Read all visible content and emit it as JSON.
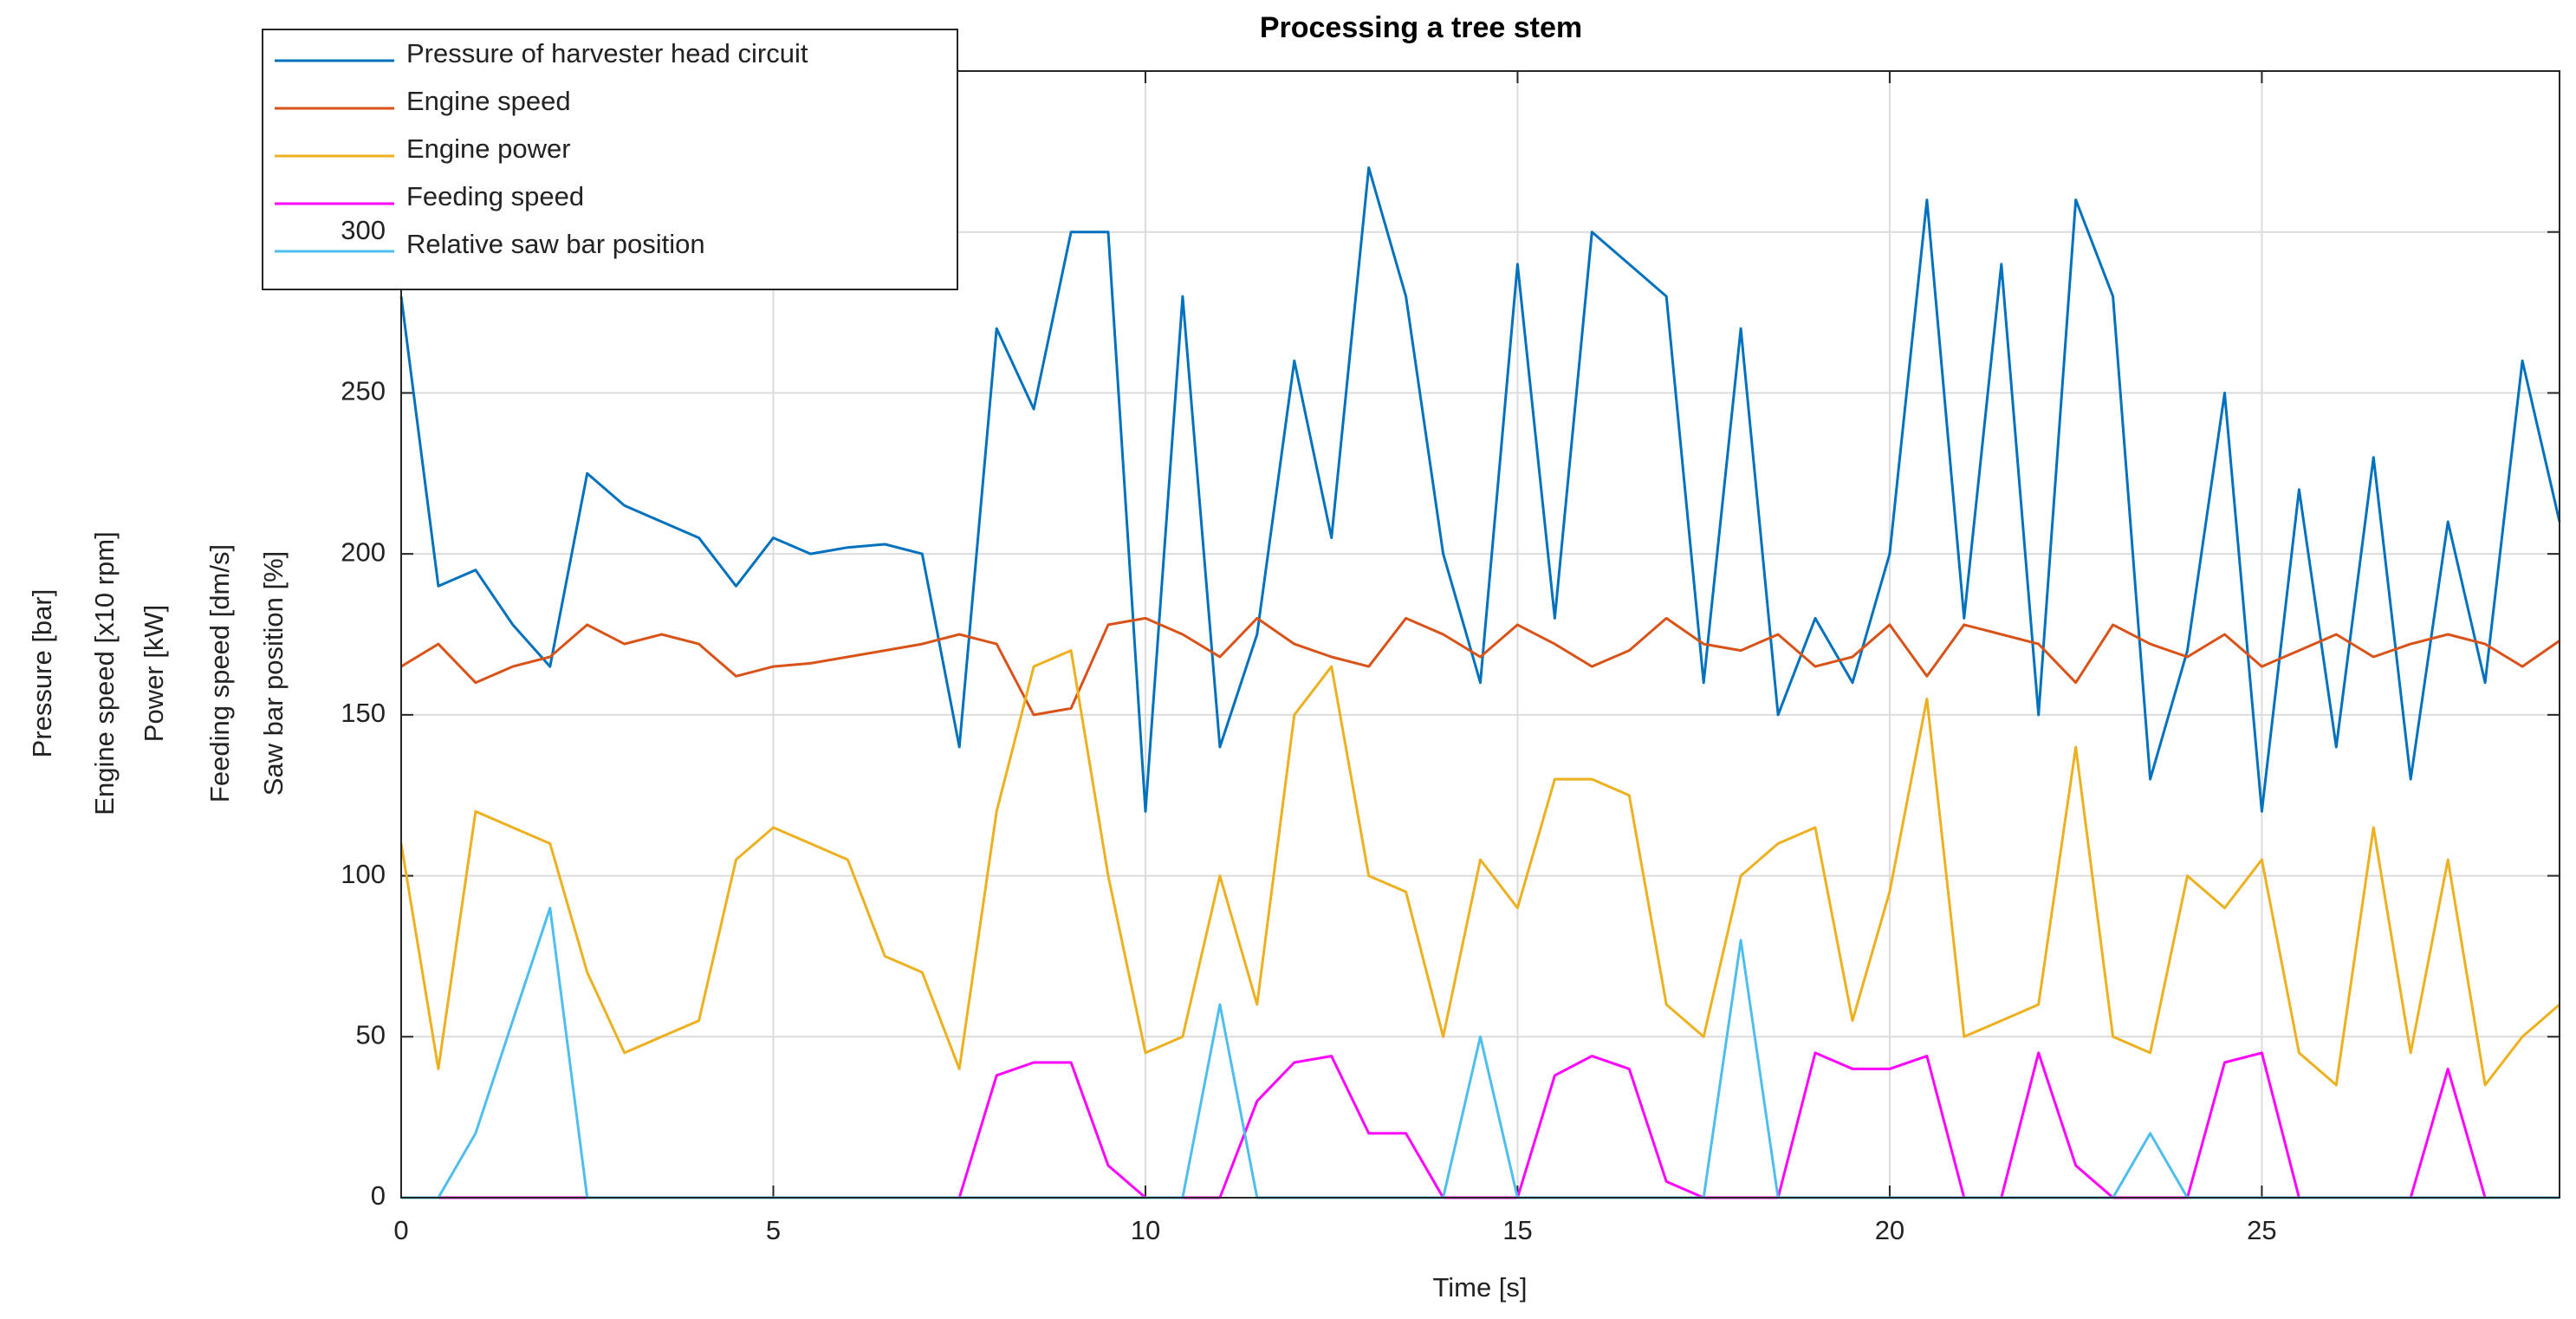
{
  "chart_data": {
    "type": "line",
    "title": "Processing a tree stem",
    "x_label": "Time [s]",
    "y_label": [
      "Pressure [bar]",
      "Engine speed [x10 rpm]",
      "Power [kW]",
      "Feeding speed [dm/s]",
      "Saw bar position [%]"
    ],
    "xlim": [
      0,
      29
    ],
    "ylim": [
      0,
      350
    ],
    "xticks": [
      0,
      5,
      10,
      15,
      20,
      25
    ],
    "yticks": [
      0,
      50,
      100,
      150,
      200,
      250,
      300
    ],
    "grid": true,
    "legend": "upper left",
    "x": [
      0,
      0.5,
      1,
      1.5,
      2,
      2.5,
      3,
      3.5,
      4,
      4.5,
      5,
      5.5,
      6,
      6.5,
      7,
      7.5,
      8,
      8.5,
      9,
      9.5,
      10,
      10.5,
      11,
      11.5,
      12,
      12.5,
      13,
      13.5,
      14,
      14.5,
      15,
      15.5,
      16,
      16.5,
      17,
      17.5,
      18,
      18.5,
      19,
      19.5,
      20,
      20.5,
      21,
      21.5,
      22,
      22.5,
      23,
      23.5,
      24,
      24.5,
      25,
      25.5,
      26,
      26.5,
      27,
      27.5,
      28,
      28.5,
      29
    ],
    "series": [
      {
        "name": "Pressure of harvester head circuit",
        "color": "#0072bd",
        "values": [
          280,
          190,
          195,
          178,
          165,
          225,
          215,
          210,
          205,
          190,
          205,
          200,
          202,
          203,
          200,
          140,
          270,
          245,
          300,
          300,
          120,
          280,
          140,
          175,
          260,
          205,
          320,
          280,
          200,
          160,
          290,
          180,
          300,
          290,
          280,
          160,
          270,
          150,
          180,
          160,
          200,
          310,
          180,
          290,
          150,
          310,
          280,
          130,
          170,
          250,
          120,
          220,
          140,
          230,
          130,
          210,
          160,
          260,
          210
        ]
      },
      {
        "name": "Engine speed",
        "color": "#d95319",
        "values": [
          165,
          172,
          160,
          165,
          168,
          178,
          172,
          175,
          172,
          162,
          165,
          166,
          168,
          170,
          172,
          175,
          172,
          150,
          152,
          178,
          180,
          175,
          168,
          180,
          172,
          168,
          165,
          180,
          175,
          168,
          178,
          172,
          165,
          170,
          180,
          172,
          170,
          175,
          165,
          168,
          178,
          162,
          178,
          175,
          172,
          160,
          178,
          172,
          168,
          175,
          165,
          170,
          175,
          168,
          172,
          175,
          172,
          165,
          173
        ]
      },
      {
        "name": "Engine power",
        "color": "#edb120",
        "values": [
          110,
          40,
          120,
          115,
          110,
          70,
          45,
          50,
          55,
          105,
          115,
          110,
          105,
          75,
          70,
          40,
          120,
          165,
          170,
          100,
          45,
          50,
          100,
          60,
          150,
          165,
          100,
          95,
          50,
          105,
          90,
          130,
          130,
          125,
          60,
          50,
          100,
          110,
          115,
          55,
          95,
          155,
          50,
          55,
          60,
          140,
          50,
          45,
          100,
          90,
          105,
          45,
          35,
          115,
          45,
          105,
          35,
          50,
          60
        ]
      },
      {
        "name": "Feeding speed",
        "color": "#ff00ff",
        "values": [
          0,
          0,
          0,
          0,
          0,
          0,
          0,
          0,
          0,
          0,
          0,
          0,
          0,
          0,
          0,
          0,
          38,
          42,
          42,
          10,
          0,
          0,
          0,
          30,
          42,
          44,
          20,
          20,
          0,
          0,
          0,
          38,
          44,
          40,
          5,
          0,
          0,
          0,
          45,
          40,
          40,
          44,
          0,
          0,
          45,
          10,
          0,
          0,
          0,
          42,
          45,
          0,
          0,
          0,
          0,
          40,
          0,
          0,
          0
        ]
      },
      {
        "name": "Relative saw bar position",
        "color": "#4dbeee",
        "values": [
          0,
          0,
          20,
          55,
          90,
          0,
          0,
          0,
          0,
          0,
          0,
          0,
          0,
          0,
          0,
          0,
          0,
          0,
          0,
          0,
          0,
          0,
          60,
          0,
          0,
          0,
          0,
          0,
          0,
          50,
          0,
          0,
          0,
          0,
          0,
          0,
          80,
          0,
          0,
          0,
          0,
          0,
          0,
          0,
          0,
          0,
          0,
          20,
          0,
          0,
          0,
          0,
          0,
          0,
          0,
          0,
          0,
          0,
          0
        ]
      }
    ]
  }
}
